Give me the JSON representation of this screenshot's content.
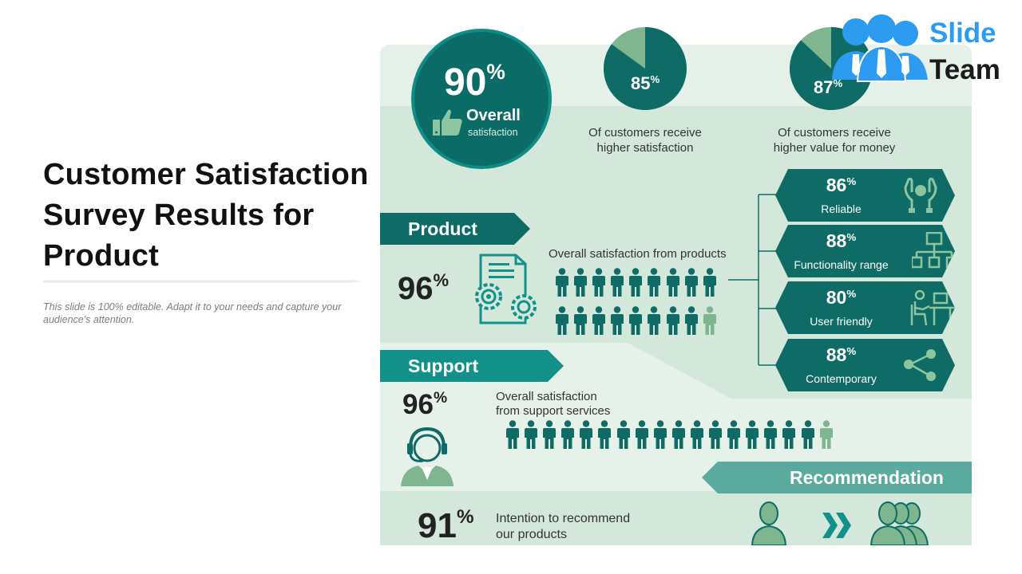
{
  "left": {
    "title": "Customer Satisfaction Survey Results for Product",
    "subtitle": "This slide is 100% editable. Adapt it to your needs and capture your audience's attention."
  },
  "logo": {
    "line1": "Slide",
    "line2": "Team"
  },
  "colors": {
    "dark_teal": "#0e6b66",
    "mid_teal": "#12908a",
    "light_green": "#d4e7db",
    "pale_green": "#e6f1ea",
    "accent_green": "#7fb58f",
    "logo_blue": "#2d9cf0"
  },
  "overall": {
    "value": "90",
    "symbol": "%",
    "label": "Overall",
    "sublabel": "satisfaction",
    "icon": "thumbs-up-icon"
  },
  "pies": [
    {
      "value": "85",
      "symbol": "%",
      "fraction": 0.85,
      "caption": [
        "Of customers receive",
        "higher satisfaction"
      ]
    },
    {
      "value": "87",
      "symbol": "%",
      "fraction": 0.87,
      "caption": [
        "Of customers receive",
        "higher value for money"
      ]
    }
  ],
  "product": {
    "banner": "Product",
    "value": "96",
    "symbol": "%",
    "label": "Overall satisfaction from products",
    "icon": "product-gears-icon",
    "people_total": 18,
    "people_highlighted": 17
  },
  "attributes": [
    {
      "value": "86",
      "symbol": "%",
      "label": "Reliable",
      "icon": "hands-care-icon"
    },
    {
      "value": "88",
      "symbol": "%",
      "label": "Functionality range",
      "icon": "hierarchy-icon"
    },
    {
      "value": "80",
      "symbol": "%",
      "label": "User friendly",
      "icon": "desk-user-icon"
    },
    {
      "value": "88",
      "symbol": "%",
      "label": "Contemporary",
      "icon": "share-icon"
    }
  ],
  "support": {
    "banner": "Support",
    "value": "96",
    "symbol": "%",
    "label_lines": [
      "Overall satisfaction",
      "from support services"
    ],
    "icon": "support-agent-icon",
    "people_total": 18,
    "people_highlighted": 17
  },
  "recommendation": {
    "banner": "Recommendation",
    "value": "91",
    "symbol": "%",
    "label_lines": [
      "Intention to recommend",
      "our products"
    ],
    "icons": [
      "person-icon",
      "double-chevron-icon",
      "group-icon"
    ]
  }
}
